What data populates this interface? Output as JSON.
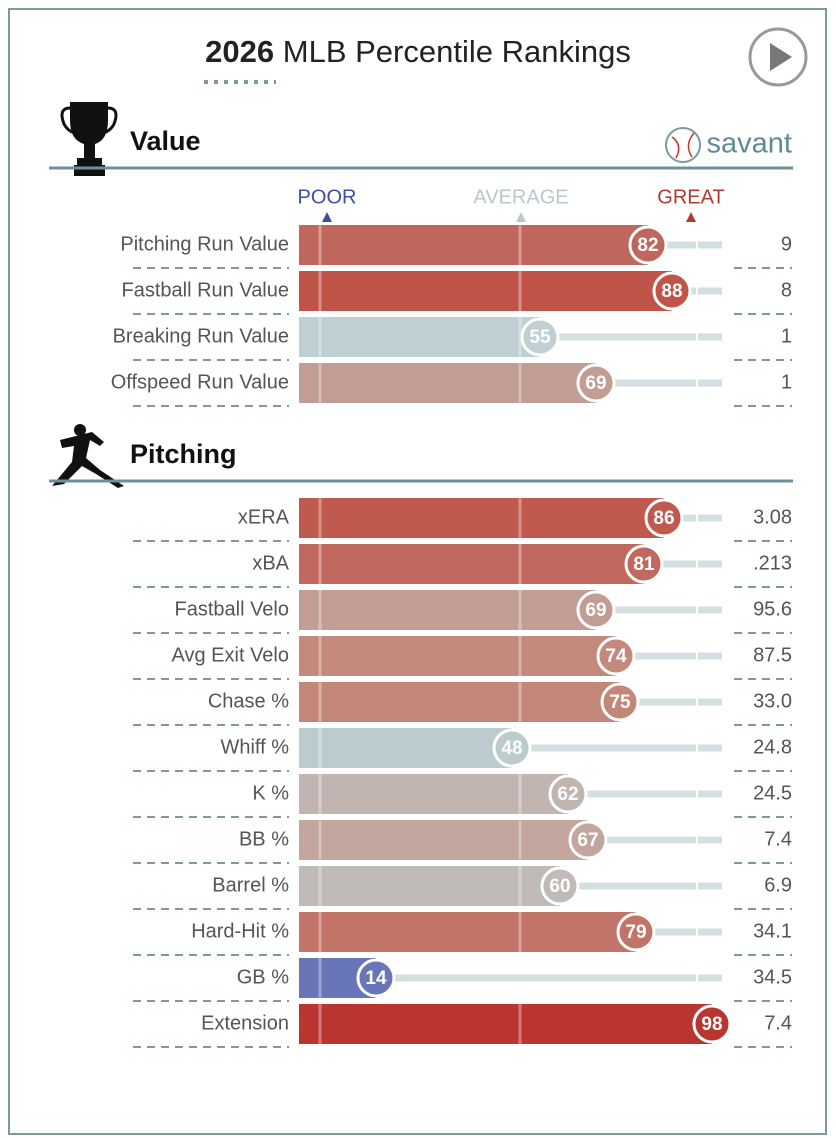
{
  "title_year": "2026",
  "title_text": "MLB Percentile Rankings",
  "brand": "savant",
  "scale_labels": [
    "POOR",
    "AVERAGE",
    "GREAT"
  ],
  "chart_data": [
    {
      "type": "bar",
      "title": "Value",
      "xlim": [
        0,
        100
      ],
      "categories": [
        "Pitching Run Value",
        "Fastball Run Value",
        "Breaking Run Value",
        "Offspeed Run Value"
      ],
      "values": [
        82,
        88,
        55,
        69
      ],
      "stat_values": [
        "9",
        "8",
        "1",
        "1"
      ],
      "colors": [
        "#c0675d",
        "#c05449",
        "#bfcfd2",
        "#c29d94"
      ]
    },
    {
      "type": "bar",
      "title": "Pitching",
      "xlim": [
        0,
        100
      ],
      "categories": [
        "xERA",
        "xBA",
        "Fastball Velo",
        "Avg Exit Velo",
        "Chase %",
        "Whiff %",
        "K %",
        "BB %",
        "Barrel %",
        "Hard-Hit %",
        "GB %",
        "Extension"
      ],
      "values": [
        86,
        81,
        69,
        74,
        75,
        48,
        62,
        67,
        60,
        79,
        14,
        98
      ],
      "stat_values": [
        "3.08",
        ".213",
        "95.6",
        "87.5",
        "33.0",
        "24.8",
        "24.5",
        "7.4",
        "6.9",
        "34.1",
        "34.5",
        "7.4"
      ],
      "colors": [
        "#c05a4e",
        "#c1695e",
        "#c29d94",
        "#c38a7c",
        "#c3877a",
        "#bccbce",
        "#c1b4b1",
        "#c2a59d",
        "#c1bbb8",
        "#c27468",
        "#6876b8",
        "#ba3530"
      ]
    }
  ]
}
